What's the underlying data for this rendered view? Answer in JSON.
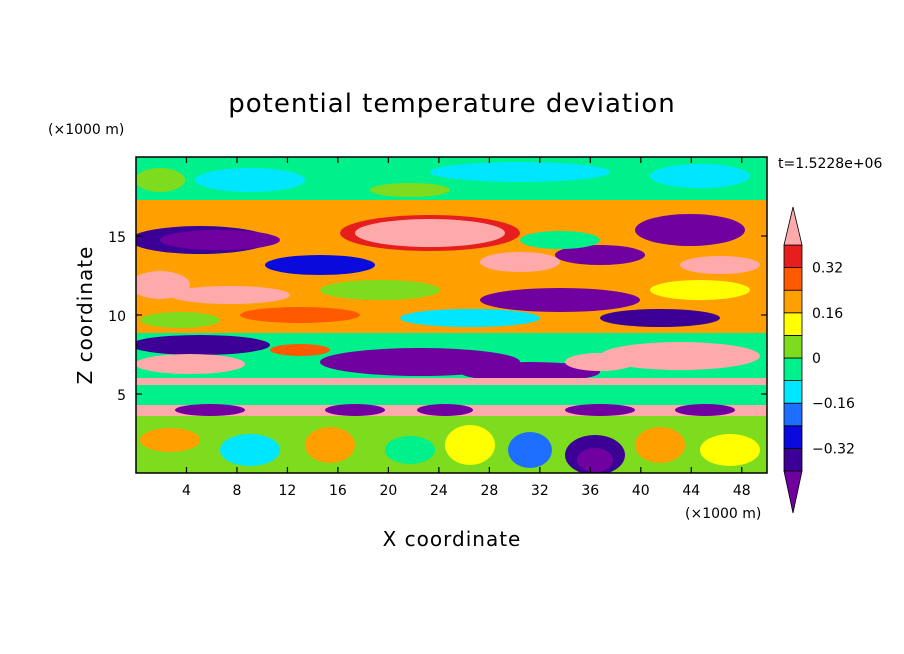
{
  "chart_data": {
    "type": "heatmap",
    "title": "potential temperature deviation",
    "xlabel": "X coordinate",
    "ylabel": "Z coordinate",
    "x_unit": "(×1000 m)",
    "y_unit": "(×1000 m)",
    "time_label": "t=1.5228e+06",
    "xlim": [
      0,
      50
    ],
    "ylim": [
      0,
      20
    ],
    "x_ticks": [
      4,
      8,
      12,
      16,
      20,
      24,
      28,
      32,
      36,
      40,
      44,
      48
    ],
    "y_ticks": [
      5,
      10,
      15
    ],
    "grid": false,
    "colorbar": {
      "placement": "right",
      "levels": [
        -0.4,
        -0.32,
        -0.24,
        -0.16,
        -0.08,
        0,
        0.08,
        0.16,
        0.24,
        0.32,
        0.4
      ],
      "tick_values": [
        0.32,
        0.16,
        0,
        -0.16,
        -0.32
      ],
      "tick_labels": [
        "0.32",
        "0.16",
        "0",
        "−0.16",
        "−0.32"
      ],
      "colors": [
        "#7000a0",
        "#3c0096",
        "#0a0adc",
        "#1e6eff",
        "#00e6ff",
        "#00f08c",
        "#7ddc1e",
        "#ffff00",
        "#ffa000",
        "#ff5a00",
        "#e61e1e",
        "#ffaaaa"
      ],
      "extend": "both"
    },
    "horizontal_bands": [
      {
        "z_from": 5.5,
        "z_to": 5.8,
        "level": "0.40+"
      },
      {
        "z_from": 4.0,
        "z_to": 4.4,
        "level": "0.40+"
      },
      {
        "z_from": 4.4,
        "z_to": 5.2,
        "level": "0.00 to 0.08"
      }
    ]
  }
}
